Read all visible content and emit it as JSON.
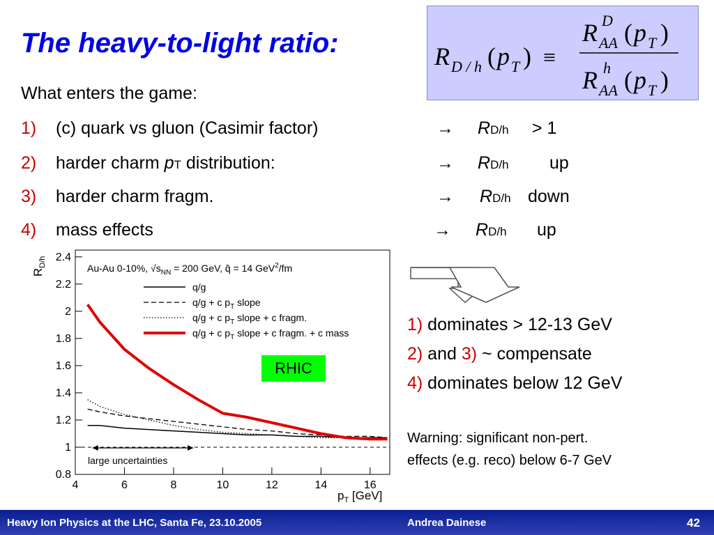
{
  "slide": {
    "title": "The heavy-to-light ratio:",
    "formula": {
      "lhs_main": "R",
      "lhs_sub": "D / h",
      "lhs_arg_open": "(",
      "lhs_arg_p": "p",
      "lhs_arg_sub": "T",
      "lhs_arg_close": ")",
      "equiv": "≡",
      "num_main": "R",
      "num_sup": "D",
      "num_sub": "AA",
      "den_main": "R",
      "den_sup": "h",
      "den_sub": "AA",
      "arg_open": "(",
      "arg_p": "p",
      "arg_sub": "T",
      "arg_close": ")"
    },
    "intro": "What enters the game:",
    "items": [
      {
        "num": "1)",
        "text": "(c) quark vs gluon (Casimir factor)",
        "arrow": "→",
        "r": "R",
        "rsub": "D/h",
        "result": "> 1"
      },
      {
        "num": "2)",
        "text_a": "harder charm ",
        "text_p": "p",
        "text_sub": "T",
        "text_b": " distribution:",
        "arrow": "→",
        "r": "R",
        "rsub": "D/h",
        "result": "up"
      },
      {
        "num": "3)",
        "text": "harder charm fragm.",
        "arrow": "→",
        "r": "R",
        "rsub": "D/h",
        "result": "down"
      },
      {
        "num": "4)",
        "text": "mass effects",
        "arrow": "→",
        "r": "R",
        "rsub": "D/h",
        "result": "up"
      }
    ],
    "rhic_label": "RHIC",
    "right_text": [
      {
        "num": "1)",
        "text": " dominates  > 12-13 GeV"
      },
      {
        "num_a": "2)",
        "mid": " and ",
        "num_b": "3)",
        "text": "  ~ compensate"
      },
      {
        "num": "4)",
        "text": " dominates below 12 GeV"
      }
    ],
    "warning": [
      "Warning: significant non-pert.",
      "effects (e.g. reco) below 6-7 GeV"
    ],
    "footer": {
      "left": "Heavy Ion Physics at the LHC, Santa Fe, 23.10.2005",
      "center": "Andrea Dainese",
      "page": "42"
    }
  },
  "chart_data": {
    "type": "line",
    "ylabel": "R",
    "ylabel_sub": "D/h",
    "xlabel": "p",
    "xlabel_sub": "T",
    "xlabel_unit": " [GeV]",
    "xlim": [
      4,
      16.8
    ],
    "ylim": [
      0.8,
      2.45
    ],
    "xticks": [
      4,
      6,
      8,
      10,
      12,
      14,
      16
    ],
    "yticks": [
      0.8,
      1,
      1.2,
      1.4,
      1.6,
      1.8,
      2,
      2.2,
      2.4
    ],
    "ytick_labels": [
      "0.8",
      "1",
      "1.2",
      "1.4",
      "1.6",
      "1.8",
      "2",
      "2.2",
      "2.4"
    ],
    "legend_header": "Au-Au 0-10%, √s",
    "legend_header_sub": "NN",
    "legend_header_rest": " = 200 GeV, q̂ = 14 GeV",
    "legend_header_sup": "2",
    "legend_header_end": "/fm",
    "uncertainty_label": "large uncertainties",
    "uncertainty_range": [
      4.7,
      8.8
    ],
    "reference_line": 1.0,
    "series": [
      {
        "name": "q/g",
        "name_sub": "",
        "style": "solid",
        "color": "#000000",
        "x": [
          4.5,
          5,
          6,
          7,
          8,
          9,
          10,
          11,
          12,
          13,
          14,
          15,
          16,
          16.7
        ],
        "y": [
          1.16,
          1.16,
          1.14,
          1.13,
          1.12,
          1.11,
          1.1,
          1.09,
          1.09,
          1.08,
          1.08,
          1.07,
          1.07,
          1.07
        ]
      },
      {
        "name": "q/g + c p",
        "name_sub": "T",
        "name_rest": " slope",
        "style": "dashed",
        "color": "#000000",
        "x": [
          4.5,
          5,
          6,
          7,
          8,
          9,
          10,
          11,
          12,
          13,
          14,
          15,
          16,
          16.7
        ],
        "y": [
          1.28,
          1.26,
          1.23,
          1.21,
          1.19,
          1.17,
          1.15,
          1.13,
          1.12,
          1.1,
          1.09,
          1.08,
          1.08,
          1.07
        ]
      },
      {
        "name": "q/g + c p",
        "name_sub": "T",
        "name_rest": " slope + c fragm.",
        "style": "dotted",
        "color": "#000000",
        "x": [
          4.5,
          5,
          6,
          7,
          8,
          9,
          10,
          11,
          12,
          13,
          14,
          15,
          16,
          16.7
        ],
        "y": [
          1.35,
          1.3,
          1.24,
          1.2,
          1.16,
          1.13,
          1.11,
          1.1,
          1.09,
          1.08,
          1.07,
          1.07,
          1.06,
          1.06
        ]
      },
      {
        "name": "q/g + c p",
        "name_sub": "T",
        "name_rest": " slope + c fragm. + c mass",
        "style": "solid-thick",
        "color": "#e00000",
        "x": [
          4.5,
          5,
          6,
          7,
          8,
          9,
          10,
          11,
          12,
          13,
          14,
          15,
          16,
          16.7
        ],
        "y": [
          2.05,
          1.92,
          1.72,
          1.58,
          1.46,
          1.35,
          1.25,
          1.22,
          1.18,
          1.14,
          1.1,
          1.07,
          1.06,
          1.06
        ]
      }
    ]
  }
}
